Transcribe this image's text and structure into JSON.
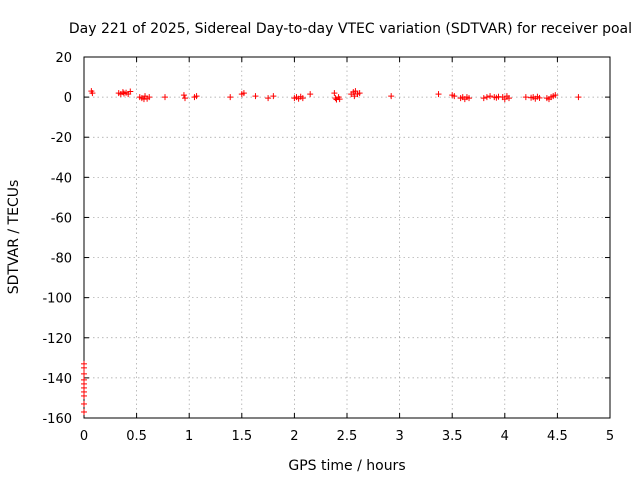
{
  "chart_data": {
    "type": "scatter",
    "title": "Day 221 of 2025, Sidereal Day-to-day VTEC variation (SDTVAR) for receiver poal",
    "xlabel": "GPS time / hours",
    "ylabel": "SDTVAR / TECUs",
    "xlim": [
      0,
      5
    ],
    "ylim": [
      -160,
      20
    ],
    "xticks": [
      0,
      0.5,
      1,
      1.5,
      2,
      2.5,
      3,
      3.5,
      4,
      4.5,
      5
    ],
    "xtick_labels": [
      "0",
      "0.5",
      "1",
      "1.5",
      "2",
      "2.5",
      "3",
      "3.5",
      "4",
      "4.5",
      "5"
    ],
    "yticks": [
      20,
      0,
      -20,
      -40,
      -60,
      -80,
      -100,
      -120,
      -140,
      -160
    ],
    "ytick_labels": [
      "20",
      "0",
      "-20",
      "-40",
      "-60",
      "-80",
      "-100",
      "-120",
      "-140",
      "-160"
    ],
    "grid": true,
    "marker": "+",
    "color": "#ff0000",
    "series": [
      {
        "name": "SDTVAR",
        "points": [
          [
            0.0,
            -133
          ],
          [
            0.0,
            -135
          ],
          [
            0.0,
            -138
          ],
          [
            0.0,
            -141
          ],
          [
            0.0,
            -143
          ],
          [
            0.0,
            -145
          ],
          [
            0.0,
            -147
          ],
          [
            0.0,
            -149
          ],
          [
            0.0,
            -153
          ],
          [
            0.0,
            -157
          ],
          [
            0.07,
            3
          ],
          [
            0.08,
            2
          ],
          [
            0.33,
            2
          ],
          [
            0.35,
            1.5
          ],
          [
            0.37,
            2.5
          ],
          [
            0.38,
            1.8
          ],
          [
            0.4,
            2.2
          ],
          [
            0.42,
            1.5
          ],
          [
            0.44,
            2.8
          ],
          [
            0.53,
            0
          ],
          [
            0.55,
            -0.5
          ],
          [
            0.57,
            -1
          ],
          [
            0.58,
            0.5
          ],
          [
            0.6,
            -0.8
          ],
          [
            0.62,
            0
          ],
          [
            0.77,
            0
          ],
          [
            0.95,
            1
          ],
          [
            0.96,
            -0.5
          ],
          [
            1.05,
            0
          ],
          [
            1.07,
            0.5
          ],
          [
            1.39,
            0
          ],
          [
            1.5,
            1.5
          ],
          [
            1.52,
            2
          ],
          [
            1.63,
            0.5
          ],
          [
            1.75,
            -0.5
          ],
          [
            1.8,
            0.5
          ],
          [
            2.0,
            -0.5
          ],
          [
            2.02,
            0
          ],
          [
            2.04,
            -0.8
          ],
          [
            2.06,
            0.2
          ],
          [
            2.08,
            -0.5
          ],
          [
            2.15,
            1.5
          ],
          [
            2.38,
            2
          ],
          [
            2.39,
            -0.5
          ],
          [
            2.4,
            -1.2
          ],
          [
            2.42,
            0
          ],
          [
            2.43,
            -1
          ],
          [
            2.54,
            1.5
          ],
          [
            2.56,
            2.5
          ],
          [
            2.57,
            0.5
          ],
          [
            2.58,
            3
          ],
          [
            2.6,
            1.5
          ],
          [
            2.62,
            2
          ],
          [
            2.92,
            0.5
          ],
          [
            3.37,
            1.5
          ],
          [
            3.5,
            1
          ],
          [
            3.52,
            0.5
          ],
          [
            3.58,
            -0.5
          ],
          [
            3.6,
            0
          ],
          [
            3.62,
            -1
          ],
          [
            3.64,
            0
          ],
          [
            3.66,
            -0.5
          ],
          [
            3.8,
            -0.5
          ],
          [
            3.83,
            0
          ],
          [
            3.86,
            0.5
          ],
          [
            3.9,
            0
          ],
          [
            3.92,
            -0.3
          ],
          [
            3.94,
            0.2
          ],
          [
            3.98,
            0
          ],
          [
            4.0,
            -1
          ],
          [
            4.02,
            0.5
          ],
          [
            4.04,
            -0.5
          ],
          [
            4.2,
            0
          ],
          [
            4.25,
            -0.3
          ],
          [
            4.27,
            0
          ],
          [
            4.29,
            -0.8
          ],
          [
            4.31,
            0.2
          ],
          [
            4.33,
            -0.4
          ],
          [
            4.4,
            -0.5
          ],
          [
            4.42,
            -1
          ],
          [
            4.44,
            0
          ],
          [
            4.46,
            0.5
          ],
          [
            4.48,
            1
          ],
          [
            4.7,
            0
          ]
        ]
      }
    ]
  }
}
